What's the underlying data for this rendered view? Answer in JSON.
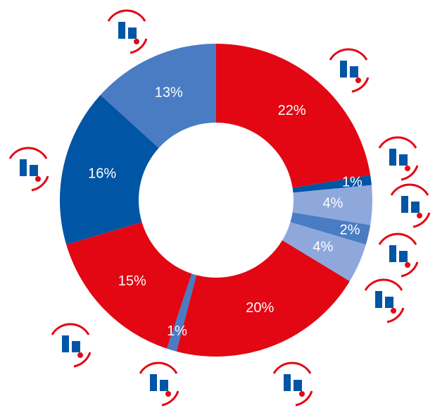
{
  "chart_data": {
    "type": "donut",
    "values": [
      22,
      1,
      4,
      2,
      4,
      20,
      1,
      15,
      16,
      13
    ],
    "value_labels": [
      "22%",
      "1%",
      "4%",
      "2%",
      "4%",
      "20%",
      "1%",
      "15%",
      "16%",
      "13%"
    ],
    "colors": [
      "#e30613",
      "#0055a5",
      "#8fa8dc",
      "#4a7cc4",
      "#8fa8dc",
      "#e30613",
      "#4a7cc4",
      "#e30613",
      "#0055a5",
      "#4a7cc4"
    ]
  }
}
